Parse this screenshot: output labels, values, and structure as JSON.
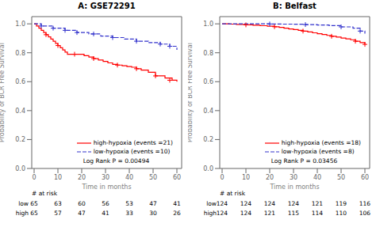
{
  "chart_data": [
    {
      "type": "step",
      "title": "A: GSE72291",
      "xlabel": "Time in months",
      "ylabel": "Probability of BCR Free Survival",
      "xlim": [
        -1,
        62
      ],
      "ylim": [
        0.0,
        1.05
      ],
      "xticks": [
        0,
        10,
        20,
        30,
        40,
        50,
        60
      ],
      "yticks": [
        {
          "value": 0.0,
          "label": "0.0"
        },
        {
          "value": 0.2,
          "label": "0.2"
        },
        {
          "value": 0.4,
          "label": "0.4"
        },
        {
          "value": 0.6,
          "label": "0.6"
        },
        {
          "value": 0.8,
          "label": "0.8"
        },
        {
          "value": 1.0,
          "label": "1.0"
        }
      ],
      "legend": "bottom",
      "series": [
        {
          "name": "high-hypoxia (events =21)",
          "color": "#FF0000",
          "line_style": "solid",
          "marker": "plus",
          "x": [
            0,
            1,
            2,
            3,
            4,
            5,
            6,
            7,
            8,
            9,
            10,
            11,
            12,
            13,
            14,
            15,
            17,
            19,
            21,
            23,
            25,
            27,
            29,
            31,
            33,
            35,
            37,
            39,
            41,
            43,
            45,
            48,
            51,
            55,
            58,
            60
          ],
          "values": [
            1.0,
            0.985,
            0.97,
            0.955,
            0.94,
            0.925,
            0.91,
            0.895,
            0.88,
            0.865,
            0.85,
            0.835,
            0.82,
            0.805,
            0.79,
            0.79,
            0.79,
            0.79,
            0.78,
            0.77,
            0.76,
            0.75,
            0.74,
            0.73,
            0.72,
            0.715,
            0.71,
            0.705,
            0.7,
            0.69,
            0.68,
            0.665,
            0.64,
            0.625,
            0.61,
            0.6
          ],
          "censor_x": [
            5,
            10,
            17,
            25,
            35,
            43,
            51,
            57
          ],
          "censor_values": [
            0.925,
            0.85,
            0.79,
            0.76,
            0.715,
            0.69,
            0.64,
            0.61
          ]
        },
        {
          "name": "low-hypoxia (events =10)",
          "color": "#3333CC",
          "line_style": "dashed",
          "marker": "plus",
          "x": [
            0,
            3,
            8,
            13,
            18,
            23,
            28,
            33,
            38,
            43,
            48,
            53,
            57,
            60
          ],
          "values": [
            1.0,
            0.985,
            0.97,
            0.955,
            0.94,
            0.93,
            0.915,
            0.905,
            0.895,
            0.88,
            0.87,
            0.86,
            0.845,
            0.82
          ],
          "censor_x": [
            3,
            8,
            13,
            18,
            25,
            33,
            43,
            53,
            57
          ],
          "censor_values": [
            0.985,
            0.97,
            0.955,
            0.94,
            0.93,
            0.905,
            0.88,
            0.86,
            0.845
          ]
        }
      ],
      "annotations": [
        "Log Rank P = 0.00494"
      ],
      "at_risk": {
        "header": "# at risk",
        "times": [
          0,
          10,
          20,
          30,
          40,
          50,
          60
        ],
        "rows": [
          {
            "label": "low",
            "values": [
              65,
              63,
              60,
              56,
              53,
              47,
              41
            ]
          },
          {
            "label": "high",
            "values": [
              65,
              57,
              47,
              41,
              33,
              30,
              26
            ]
          }
        ]
      }
    },
    {
      "type": "step",
      "title": "B: Belfast",
      "xlabel": "Time in months",
      "ylabel": "Probability of BCR Free Survival",
      "xlim": [
        -1,
        62
      ],
      "ylim": [
        0.0,
        1.05
      ],
      "xticks": [
        0,
        10,
        20,
        30,
        40,
        50,
        60
      ],
      "yticks": [
        {
          "value": 0.0,
          "label": "0.0"
        },
        {
          "value": 0.2,
          "label": "0.2"
        },
        {
          "value": 0.4,
          "label": "0.4"
        },
        {
          "value": 0.6,
          "label": "0.6"
        },
        {
          "value": 0.8,
          "label": "0.8"
        },
        {
          "value": 1.0,
          "label": "1.0"
        }
      ],
      "legend": "bottom",
      "series": [
        {
          "name": "high-hypoxia (events =18)",
          "color": "#FF0000",
          "line_style": "solid",
          "marker": "plus",
          "x": [
            0,
            3,
            6,
            10,
            13,
            16,
            19,
            22,
            24,
            26,
            28,
            30,
            32,
            34,
            36,
            38,
            40,
            42,
            44,
            46,
            48,
            50,
            52,
            54,
            56,
            58,
            60
          ],
          "values": [
            1.0,
            0.998,
            0.996,
            0.993,
            0.99,
            0.987,
            0.984,
            0.98,
            0.975,
            0.97,
            0.965,
            0.96,
            0.955,
            0.95,
            0.944,
            0.938,
            0.932,
            0.926,
            0.92,
            0.914,
            0.908,
            0.902,
            0.896,
            0.89,
            0.88,
            0.87,
            0.858
          ],
          "censor_x": [
            10,
            22,
            34,
            46,
            56,
            60
          ],
          "censor_values": [
            0.993,
            0.98,
            0.95,
            0.914,
            0.88,
            0.858
          ]
        },
        {
          "name": "low-hypoxia (events =8)",
          "color": "#3333CC",
          "line_style": "dashed",
          "marker": "plus",
          "x": [
            0,
            5,
            10,
            15,
            20,
            25,
            30,
            35,
            40,
            45,
            50,
            55,
            58,
            60
          ],
          "values": [
            1.0,
            1.0,
            1.0,
            1.0,
            0.999,
            0.998,
            0.997,
            0.995,
            0.992,
            0.988,
            0.979,
            0.97,
            0.95,
            0.932
          ],
          "censor_x": [
            20,
            35,
            50,
            58
          ],
          "censor_values": [
            0.999,
            0.995,
            0.979,
            0.95
          ]
        }
      ],
      "annotations": [
        "Log Rank P = 0.03456"
      ],
      "at_risk": {
        "header": "# at risk",
        "times": [
          0,
          10,
          20,
          30,
          40,
          50,
          60
        ],
        "rows": [
          {
            "label": "low",
            "values": [
              124,
              124,
              124,
              124,
              121,
              119,
              116
            ]
          },
          {
            "label": "high",
            "values": [
              124,
              124,
              121,
              115,
              114,
              110,
              106
            ]
          }
        ]
      }
    }
  ]
}
